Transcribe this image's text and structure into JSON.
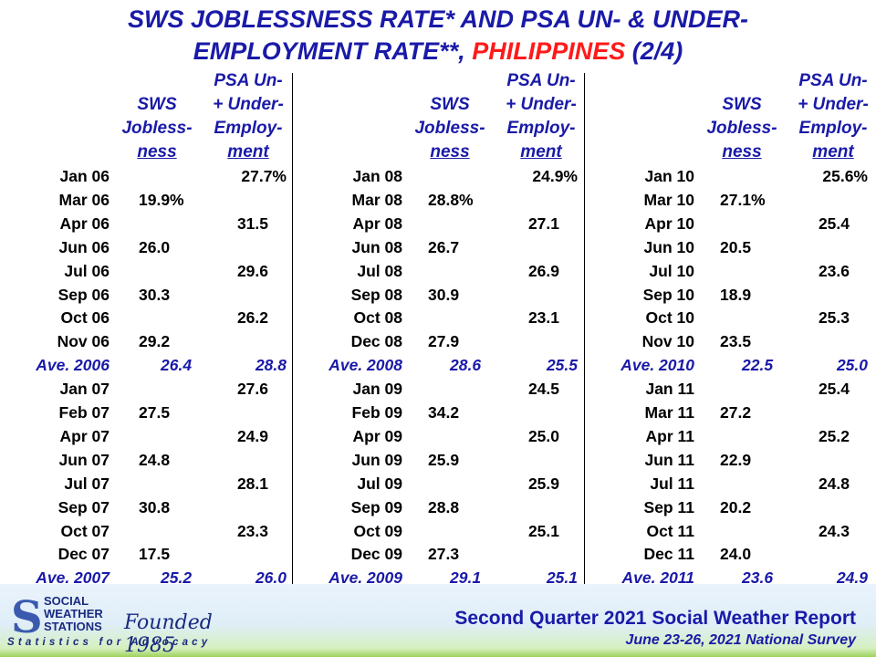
{
  "title": {
    "line1": "SWS JOBLESSNESS RATE* AND PSA UN- & UNDER-",
    "line2_prefix": "EMPLOYMENT RATE**, ",
    "line2_red": "PHILIPPINES",
    "line2_suffix": " (2/4)"
  },
  "headers": {
    "sws": [
      "SWS",
      "Jobless-",
      "ness"
    ],
    "psa": [
      "PSA Un-",
      "+ Under-",
      "Employ-",
      "ment"
    ]
  },
  "panels": [
    {
      "rows": [
        {
          "m": "Jan 06",
          "s": "",
          "p": "27.7%"
        },
        {
          "m": "Mar 06",
          "s": "19.9%",
          "p": ""
        },
        {
          "m": "Apr 06",
          "s": "",
          "p": "31.5"
        },
        {
          "m": "Jun 06",
          "s": "26.0",
          "p": ""
        },
        {
          "m": "Jul 06",
          "s": "",
          "p": "29.6"
        },
        {
          "m": "Sep 06",
          "s": "30.3",
          "p": ""
        },
        {
          "m": "Oct 06",
          "s": "",
          "p": "26.2"
        },
        {
          "m": "Nov 06",
          "s": "29.2",
          "p": ""
        },
        {
          "m": "Ave. 2006",
          "s": "26.4",
          "p": "28.8",
          "avg": true
        },
        {
          "m": "Jan 07",
          "s": "",
          "p": "27.6"
        },
        {
          "m": "Feb 07",
          "s": "27.5",
          "p": ""
        },
        {
          "m": "Apr 07",
          "s": "",
          "p": "24.9"
        },
        {
          "m": "Jun 07",
          "s": "24.8",
          "p": ""
        },
        {
          "m": "Jul 07",
          "s": "",
          "p": "28.1"
        },
        {
          "m": "Sep 07",
          "s": "30.8",
          "p": ""
        },
        {
          "m": "Oct 07",
          "s": "",
          "p": "23.3"
        },
        {
          "m": "Dec 07",
          "s": "17.5",
          "p": ""
        },
        {
          "m": "Ave. 2007",
          "s": "25.2",
          "p": "26.0",
          "avg": true
        }
      ]
    },
    {
      "rows": [
        {
          "m": "Jan 08",
          "s": "",
          "p": "24.9%"
        },
        {
          "m": "Mar 08",
          "s": "28.8%",
          "p": ""
        },
        {
          "m": "Apr 08",
          "s": "",
          "p": "27.1"
        },
        {
          "m": "Jun 08",
          "s": "26.7",
          "p": ""
        },
        {
          "m": "Jul 08",
          "s": "",
          "p": "26.9"
        },
        {
          "m": "Sep 08",
          "s": "30.9",
          "p": ""
        },
        {
          "m": "Oct 08",
          "s": "",
          "p": "23.1"
        },
        {
          "m": "Dec 08",
          "s": "27.9",
          "p": ""
        },
        {
          "m": "Ave. 2008",
          "s": "28.6",
          "p": "25.5",
          "avg": true
        },
        {
          "m": "Jan 09",
          "s": "",
          "p": "24.5"
        },
        {
          "m": "Feb 09",
          "s": "34.2",
          "p": ""
        },
        {
          "m": "Apr 09",
          "s": "",
          "p": "25.0"
        },
        {
          "m": "Jun 09",
          "s": "25.9",
          "p": ""
        },
        {
          "m": "Jul 09",
          "s": "",
          "p": "25.9"
        },
        {
          "m": "Sep 09",
          "s": "28.8",
          "p": ""
        },
        {
          "m": "Oct 09",
          "s": "",
          "p": "25.1"
        },
        {
          "m": "Dec 09",
          "s": "27.3",
          "p": ""
        },
        {
          "m": "Ave. 2009",
          "s": "29.1",
          "p": "25.1",
          "avg": true
        }
      ]
    },
    {
      "rows": [
        {
          "m": "Jan 10",
          "s": "",
          "p": "25.6%"
        },
        {
          "m": "Mar 10",
          "s": "27.1%",
          "p": ""
        },
        {
          "m": "Apr 10",
          "s": "",
          "p": "25.4"
        },
        {
          "m": "Jun 10",
          "s": "20.5",
          "p": ""
        },
        {
          "m": "Jul 10",
          "s": "",
          "p": "23.6"
        },
        {
          "m": "Sep 10",
          "s": "18.9",
          "p": ""
        },
        {
          "m": "Oct 10",
          "s": "",
          "p": "25.3"
        },
        {
          "m": "Nov 10",
          "s": "23.5",
          "p": ""
        },
        {
          "m": "Ave. 2010",
          "s": "22.5",
          "p": "25.0",
          "avg": true
        },
        {
          "m": "Jan 11",
          "s": "",
          "p": "25.4"
        },
        {
          "m": "Mar 11",
          "s": "27.2",
          "p": ""
        },
        {
          "m": "Apr 11",
          "s": "",
          "p": "25.2"
        },
        {
          "m": "Jun 11",
          "s": "22.9",
          "p": ""
        },
        {
          "m": "Jul 11",
          "s": "",
          "p": "24.8"
        },
        {
          "m": "Sep 11",
          "s": "20.2",
          "p": ""
        },
        {
          "m": "Oct 11",
          "s": "",
          "p": "24.3"
        },
        {
          "m": "Dec 11",
          "s": "24.0",
          "p": ""
        },
        {
          "m": "Ave. 2011",
          "s": "23.6",
          "p": "24.9",
          "avg": true
        }
      ]
    }
  ],
  "footer": {
    "logo_line1": "SOCIAL",
    "logo_line2": "WEATHER",
    "logo_line3": "STATIONS",
    "founded": "Founded 1985",
    "tagline": "Statistics for Advocacy",
    "report_title": "Second Quarter 2021 Social Weather Report",
    "report_sub": "June 23-26, 2021 National Survey"
  },
  "colors": {
    "primary_blue": "#1a1aa8",
    "title_red": "#ff1a1a",
    "footer_green": "#9ed25a"
  }
}
